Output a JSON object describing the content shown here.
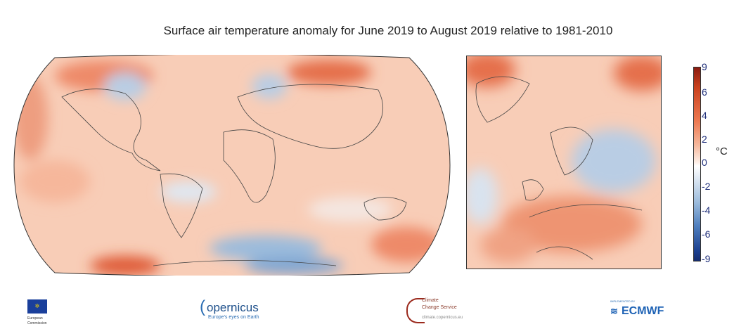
{
  "title": "Surface air temperature anomaly for June 2019 to August 2019 relative to 1981-2010",
  "colorbar": {
    "unit": "°C",
    "ticks": [
      "9",
      "6",
      "4",
      "2",
      "0",
      "-2",
      "-4",
      "-6",
      "-9"
    ],
    "colors": {
      "max": "#8a1b10",
      "warm": "#ee7a52",
      "zero": "#ffffff",
      "cool": "#9bbbdc",
      "min": "#152c6e"
    }
  },
  "logos": {
    "ec": {
      "line1": "European",
      "line2": "Commission"
    },
    "copernicus": {
      "name": "opernicus",
      "tagline": "Europe's eyes on Earth"
    },
    "c3s": {
      "line1": "Climate",
      "line2": "Change Service",
      "url": "climate.copernicus.eu"
    },
    "ecmwf": {
      "implemented": "IMPLEMENTED BY",
      "name": "ECMWF"
    }
  }
}
